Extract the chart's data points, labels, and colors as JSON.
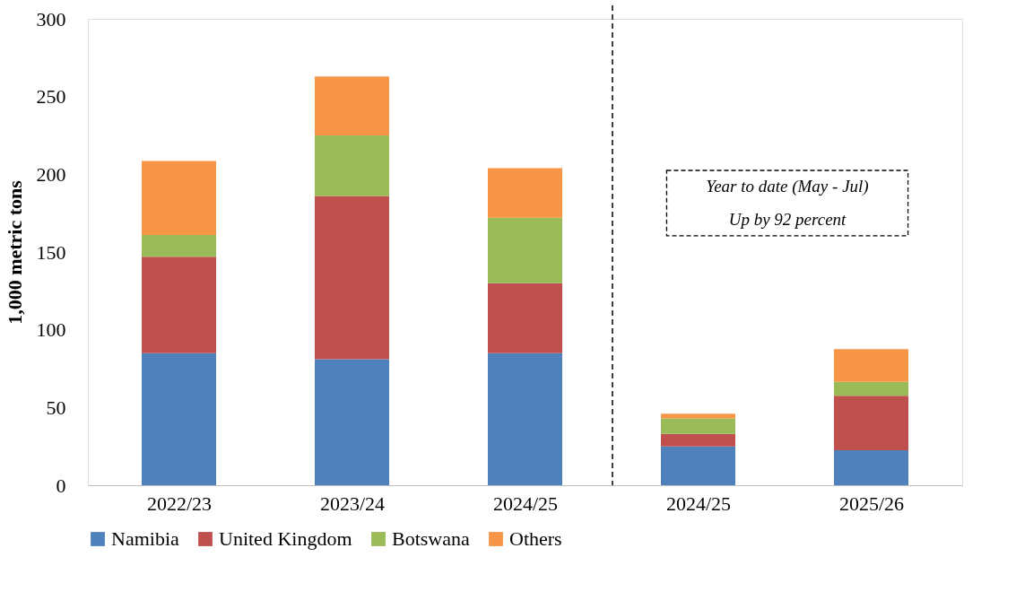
{
  "chart_data": {
    "type": "bar",
    "stacked": true,
    "ylabel": "1,000 metric tons",
    "categories": [
      "2022/23",
      "2023/24",
      "2024/25",
      "2024/25",
      "2025/26"
    ],
    "series": [
      {
        "name": "Namibia",
        "color": "#4f81bd",
        "values": [
          85,
          81,
          85,
          25,
          22.5
        ]
      },
      {
        "name": "United Kingdom",
        "color": "#c0504d",
        "values": [
          62,
          105,
          45,
          8,
          35
        ]
      },
      {
        "name": "Botswana",
        "color": "#9bbb59",
        "values": [
          14,
          39,
          42,
          10,
          9
        ]
      },
      {
        "name": "Others",
        "color": "#f79646",
        "values": [
          47.5,
          38,
          32,
          3,
          21
        ]
      }
    ],
    "ylim": [
      0,
      300
    ],
    "yticks": [
      0,
      50,
      100,
      150,
      200,
      250,
      300
    ],
    "grid": false,
    "legend": "bottom",
    "annotations": [
      "Year to date (May - Jul)",
      "Up by 92 percent"
    ]
  }
}
